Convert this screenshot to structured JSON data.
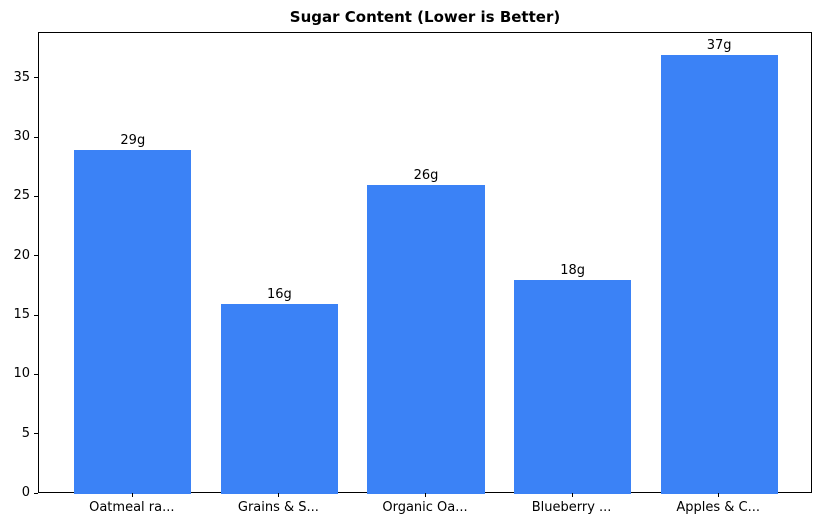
{
  "chart_data": {
    "type": "bar",
    "title": "Sugar Content (Lower is Better)",
    "categories": [
      "Oatmeal ra...",
      "Grains & S...",
      "Organic Oa...",
      "Blueberry ...",
      "Apples & C..."
    ],
    "values": [
      29,
      16,
      26,
      18,
      37
    ],
    "value_labels": [
      "29g",
      "16g",
      "26g",
      "18g",
      "37g"
    ],
    "yticks": [
      0,
      5,
      10,
      15,
      20,
      25,
      30,
      35
    ],
    "ylim": [
      0,
      38.85
    ],
    "xlim": [
      -0.64,
      4.64
    ],
    "bar_width_units": 0.8,
    "bar_color": "#3b82f6",
    "axis_color": "#000000",
    "text_color": "#000000",
    "grid": false,
    "legend": "none",
    "xlabel": "",
    "ylabel": ""
  }
}
